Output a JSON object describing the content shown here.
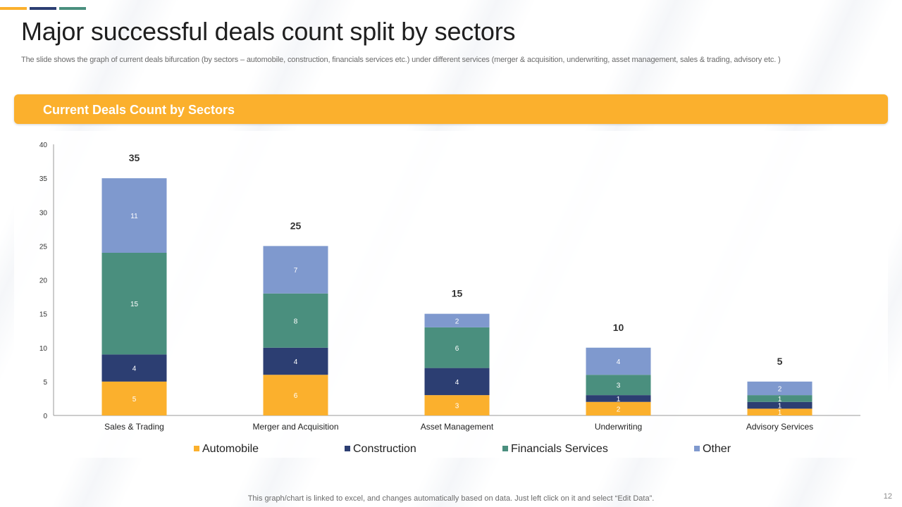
{
  "slide": {
    "title": "Major successful deals count split by sectors",
    "subtitle": "The slide shows the graph of current deals bifurcation (by sectors – automobile, construction, financials services etc.) under different services (merger & acquisition, underwriting, asset management, sales & trading, advisory etc. )",
    "banner_label": "Current Deals Count by Sectors",
    "footer_note": "This graph/chart is linked to excel,  and changes automatically based on data. Just left click on it and select “Edit Data”.",
    "page_number": "12"
  },
  "colors": {
    "accent_orange": "#FBB02D",
    "accent_navy": "#2C3E72",
    "accent_teal": "#4A8F7E",
    "banner": "#FBB02D"
  },
  "chart_data": {
    "type": "bar",
    "stacked": true,
    "categories": [
      "Sales & Trading",
      "Merger and Acquisition",
      "Asset Management",
      "Underwriting",
      "Advisory Services"
    ],
    "series": [
      {
        "name": "Automobile",
        "color": "#FBB02D",
        "values": [
          5,
          6,
          3,
          2,
          1
        ]
      },
      {
        "name": "Construction",
        "color": "#2C3E72",
        "values": [
          4,
          4,
          4,
          1,
          1
        ]
      },
      {
        "name": "Financials Services",
        "color": "#4A8F7E",
        "values": [
          15,
          8,
          6,
          3,
          1
        ]
      },
      {
        "name": "Other",
        "color": "#7F99CE",
        "values": [
          11,
          7,
          2,
          4,
          2
        ]
      }
    ],
    "totals": [
      35,
      25,
      15,
      10,
      5
    ],
    "ylim": [
      0,
      40
    ],
    "yticks": [
      0,
      5,
      10,
      15,
      20,
      25,
      30,
      35,
      40
    ],
    "grid": false,
    "legend_position": "bottom"
  }
}
